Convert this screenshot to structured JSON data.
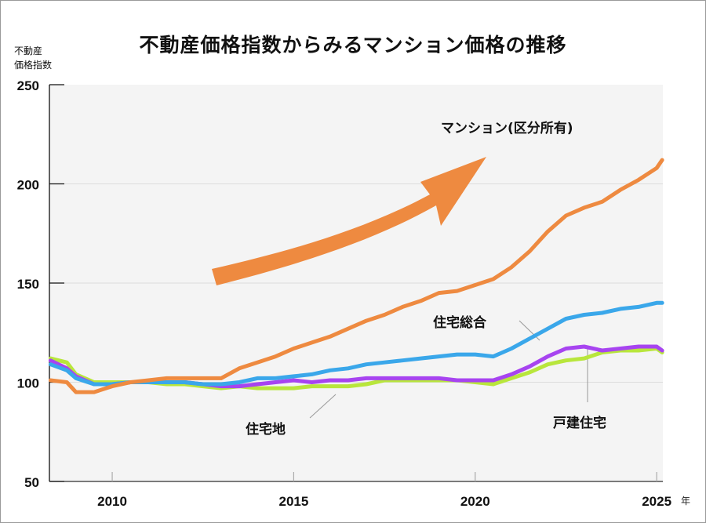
{
  "title": "不動産価格指数からみるマンション価格の推移",
  "y_axis_label_line1": "不動産",
  "y_axis_label_line2": "価格指数",
  "x_unit": "年",
  "colors": {
    "mansion": "#ee8a40",
    "housing_total": "#3aa7ea",
    "detached": "#a744f0",
    "residential_land": "#b8e63c",
    "arrow": "#ee8a40",
    "plot_bg": "#f4f4f4",
    "grid": "#dddddd"
  },
  "chart_data": {
    "type": "line",
    "title": "不動産価格指数からみるマンション価格の推移",
    "xlabel": "年",
    "ylabel": "不動産価格指数",
    "xlim": [
      2008.27,
      2025.17
    ],
    "ylim": [
      50,
      250
    ],
    "x_ticks": [
      2010,
      2015,
      2020,
      2025
    ],
    "x_tick_labels": [
      "2010",
      "2015",
      "2020",
      "2025"
    ],
    "y_ticks": [
      50,
      100,
      150,
      200,
      250
    ],
    "y_tick_labels": [
      "50",
      "100",
      "150",
      "200",
      "250"
    ],
    "grid": "horizontal",
    "annotations": [
      {
        "text": "マンション(区分所有)",
        "series": "mansion"
      },
      {
        "text": "住宅総合",
        "series": "housing_total"
      },
      {
        "text": "住宅地",
        "series": "residential_land"
      },
      {
        "text": "戸建住宅",
        "series": "detached"
      },
      {
        "text": "upward-trend-arrow",
        "series": "mansion"
      }
    ],
    "x": [
      2008.3,
      2008.75,
      2009.0,
      2009.5,
      2010.0,
      2010.5,
      2011.0,
      2011.5,
      2012.0,
      2012.5,
      2013.0,
      2013.5,
      2014.0,
      2014.5,
      2015.0,
      2015.5,
      2016.0,
      2016.5,
      2017.0,
      2017.5,
      2018.0,
      2018.5,
      2019.0,
      2019.5,
      2020.0,
      2020.5,
      2021.0,
      2021.5,
      2022.0,
      2022.5,
      2023.0,
      2023.5,
      2024.0,
      2024.5,
      2025.0,
      2025.15
    ],
    "series": [
      {
        "key": "mansion",
        "name": "マンション(区分所有)",
        "values": [
          101,
          100,
          95,
          95,
          98,
          100,
          101,
          102,
          102,
          102,
          102,
          107,
          110,
          113,
          117,
          120,
          123,
          127,
          131,
          134,
          138,
          141,
          145,
          146,
          149,
          152,
          158,
          166,
          176,
          184,
          188,
          191,
          197,
          202,
          208,
          212
        ]
      },
      {
        "key": "housing_total",
        "name": "住宅総合",
        "values": [
          109,
          106,
          102,
          99,
          99,
          100,
          100,
          100,
          100,
          99,
          99,
          100,
          102,
          102,
          103,
          104,
          106,
          107,
          109,
          110,
          111,
          112,
          113,
          114,
          114,
          113,
          117,
          122,
          127,
          132,
          134,
          135,
          137,
          138,
          140,
          140
        ]
      },
      {
        "key": "detached",
        "name": "戸建住宅",
        "values": [
          111,
          107,
          103,
          99,
          99,
          100,
          100,
          100,
          100,
          99,
          98,
          98,
          99,
          100,
          101,
          100,
          101,
          101,
          102,
          102,
          102,
          102,
          102,
          101,
          101,
          101,
          104,
          108,
          113,
          117,
          118,
          116,
          117,
          118,
          118,
          116
        ]
      },
      {
        "key": "residential_land",
        "name": "住宅地",
        "values": [
          112,
          110,
          104,
          100,
          100,
          100,
          100,
          99,
          99,
          98,
          97,
          98,
          97,
          97,
          97,
          98,
          98,
          98,
          99,
          101,
          101,
          101,
          101,
          101,
          100,
          99,
          102,
          105,
          109,
          111,
          112,
          115,
          116,
          116,
          117,
          115
        ]
      }
    ]
  }
}
